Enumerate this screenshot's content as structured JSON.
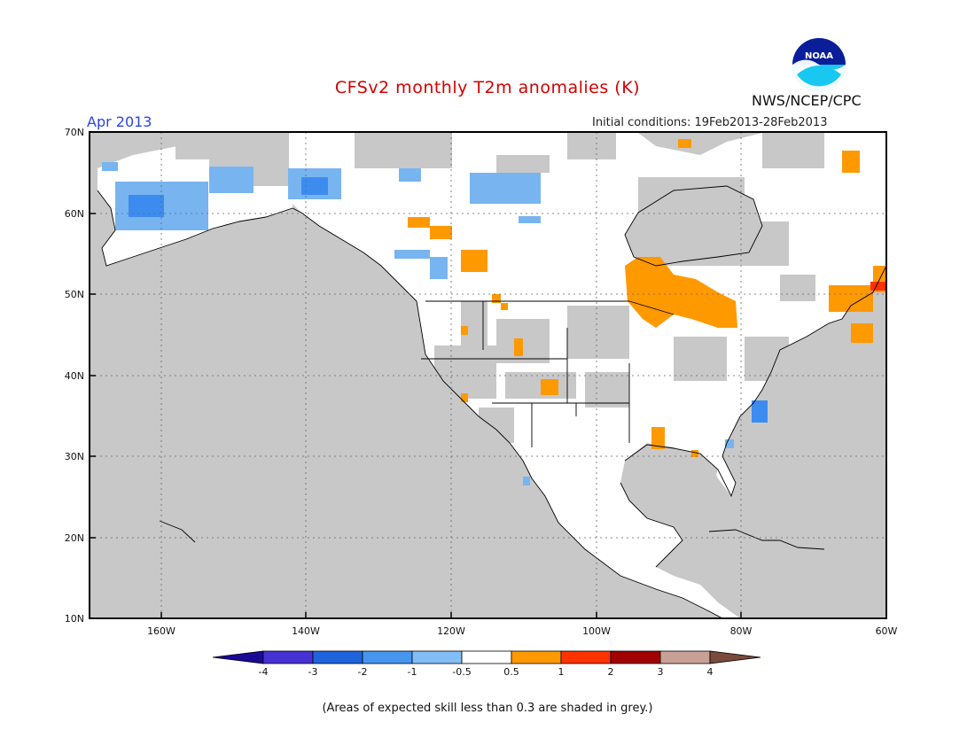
{
  "header": {
    "title": "CFSv2 monthly T2m anomalies (K)",
    "month": "Apr 2013",
    "initial_conditions": "Initial conditions: 19Feb2013-28Feb2013",
    "agency": "NWS/NCEP/CPC",
    "logo_text": "NOAA"
  },
  "map": {
    "lon_range": [
      -170,
      -60
    ],
    "lat_range": [
      10,
      70
    ],
    "lat_ticks": [
      "10N",
      "20N",
      "30N",
      "40N",
      "50N",
      "60N",
      "70N"
    ],
    "lon_ticks": [
      "160W",
      "140W",
      "120W",
      "100W",
      "80W",
      "60W"
    ],
    "colors": {
      "ocean_grey": "#c8c8c8",
      "land_white": "#ffffff",
      "warm_orange": "#ff9900",
      "cold_blue_light": "#78b4f0",
      "cold_blue": "#3c8cf0",
      "red": "#ff3300"
    }
  },
  "colorbar": {
    "labels": [
      "-4",
      "-3",
      "-2",
      "-1",
      "-0.5",
      "0.5",
      "1",
      "2",
      "3",
      "4"
    ],
    "colors": [
      "#1a0a96",
      "#4632d2",
      "#1e64dc",
      "#4696f0",
      "#82bef5",
      "#ffffff",
      "#ff9900",
      "#ff3300",
      "#a00000",
      "#c8a096",
      "#7a4a3a"
    ]
  },
  "footnote": "(Areas of expected skill less than 0.3 are shaded in grey.)"
}
